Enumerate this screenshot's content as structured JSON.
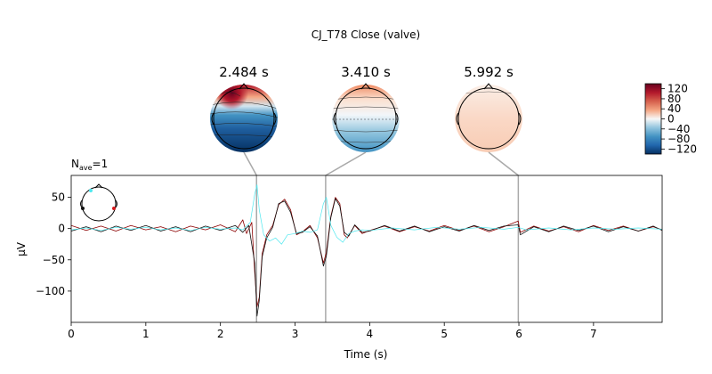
{
  "figure": {
    "title": "CJ_T78 Close (valve)",
    "nave_label": "N",
    "nave_sub": "ave",
    "nave_value": "=1"
  },
  "chart_data": {
    "type": "line",
    "xlabel": "Time (s)",
    "ylabel": "µV",
    "xlim": [
      0,
      7.92
    ],
    "ylim": [
      -150,
      85
    ],
    "xticks": [
      0,
      1,
      2,
      3,
      4,
      5,
      6,
      7
    ],
    "yticks": [
      50,
      0,
      -50,
      -100
    ],
    "grid": false,
    "series": [
      {
        "color": "#8b0000",
        "values": [
          [
            0,
            5
          ],
          [
            0.2,
            -3
          ],
          [
            0.4,
            4
          ],
          [
            0.6,
            -4
          ],
          [
            0.8,
            5
          ],
          [
            1.0,
            -2
          ],
          [
            1.2,
            3
          ],
          [
            1.4,
            -5
          ],
          [
            1.6,
            4
          ],
          [
            1.8,
            -2
          ],
          [
            2.0,
            6
          ],
          [
            2.2,
            -5
          ],
          [
            2.3,
            14
          ],
          [
            2.35,
            -8
          ],
          [
            2.42,
            10
          ],
          [
            2.46,
            -70
          ],
          [
            2.49,
            -125
          ],
          [
            2.52,
            -110
          ],
          [
            2.56,
            -40
          ],
          [
            2.62,
            -10
          ],
          [
            2.7,
            5
          ],
          [
            2.78,
            38
          ],
          [
            2.86,
            47
          ],
          [
            2.94,
            30
          ],
          [
            3.02,
            -10
          ],
          [
            3.1,
            -5
          ],
          [
            3.2,
            5
          ],
          [
            3.3,
            -15
          ],
          [
            3.35,
            -40
          ],
          [
            3.38,
            -55
          ],
          [
            3.42,
            -38
          ],
          [
            3.48,
            20
          ],
          [
            3.54,
            50
          ],
          [
            3.6,
            40
          ],
          [
            3.66,
            -10
          ],
          [
            3.7,
            -15
          ],
          [
            3.8,
            5
          ],
          [
            3.9,
            -8
          ],
          [
            4.0,
            -3
          ],
          [
            4.2,
            4
          ],
          [
            4.4,
            -5
          ],
          [
            4.6,
            3
          ],
          [
            4.8,
            -4
          ],
          [
            5.0,
            5
          ],
          [
            5.2,
            -3
          ],
          [
            5.4,
            4
          ],
          [
            5.6,
            -5
          ],
          [
            5.8,
            3
          ],
          [
            5.99,
            12
          ],
          [
            6.02,
            -6
          ],
          [
            6.2,
            4
          ],
          [
            6.4,
            -4
          ],
          [
            6.6,
            3
          ],
          [
            6.8,
            -5
          ],
          [
            7.0,
            5
          ],
          [
            7.2,
            -3
          ],
          [
            7.4,
            4
          ],
          [
            7.6,
            -4
          ],
          [
            7.8,
            3
          ],
          [
            7.92,
            -2
          ]
        ]
      },
      {
        "color": "#111111",
        "values": [
          [
            0,
            -4
          ],
          [
            0.2,
            3
          ],
          [
            0.4,
            -5
          ],
          [
            0.6,
            4
          ],
          [
            0.8,
            -3
          ],
          [
            1.0,
            5
          ],
          [
            1.2,
            -4
          ],
          [
            1.4,
            3
          ],
          [
            1.6,
            -5
          ],
          [
            1.8,
            4
          ],
          [
            2.0,
            -3
          ],
          [
            2.2,
            5
          ],
          [
            2.3,
            -6
          ],
          [
            2.38,
            5
          ],
          [
            2.46,
            -55
          ],
          [
            2.49,
            -140
          ],
          [
            2.52,
            -115
          ],
          [
            2.56,
            -45
          ],
          [
            2.62,
            -15
          ],
          [
            2.7,
            2
          ],
          [
            2.78,
            40
          ],
          [
            2.86,
            44
          ],
          [
            2.94,
            26
          ],
          [
            3.02,
            -8
          ],
          [
            3.1,
            -6
          ],
          [
            3.2,
            3
          ],
          [
            3.3,
            -12
          ],
          [
            3.35,
            -42
          ],
          [
            3.38,
            -60
          ],
          [
            3.42,
            -44
          ],
          [
            3.48,
            18
          ],
          [
            3.54,
            48
          ],
          [
            3.6,
            36
          ],
          [
            3.66,
            -6
          ],
          [
            3.72,
            -12
          ],
          [
            3.8,
            6
          ],
          [
            3.9,
            -6
          ],
          [
            4.0,
            -4
          ],
          [
            4.2,
            5
          ],
          [
            4.4,
            -4
          ],
          [
            4.6,
            4
          ],
          [
            4.8,
            -5
          ],
          [
            5.0,
            3
          ],
          [
            5.2,
            -4
          ],
          [
            5.4,
            5
          ],
          [
            5.6,
            -3
          ],
          [
            5.8,
            4
          ],
          [
            5.99,
            6
          ],
          [
            6.02,
            -10
          ],
          [
            6.2,
            3
          ],
          [
            6.4,
            -5
          ],
          [
            6.6,
            4
          ],
          [
            6.8,
            -3
          ],
          [
            7.0,
            4
          ],
          [
            7.2,
            -5
          ],
          [
            7.4,
            3
          ],
          [
            7.6,
            -4
          ],
          [
            7.8,
            4
          ],
          [
            7.92,
            -3
          ]
        ]
      },
      {
        "color": "#4de8ef",
        "values": [
          [
            0,
            -2
          ],
          [
            0.2,
            1
          ],
          [
            0.4,
            -3
          ],
          [
            0.6,
            2
          ],
          [
            0.8,
            -1
          ],
          [
            1.0,
            2
          ],
          [
            1.2,
            -2
          ],
          [
            1.4,
            1
          ],
          [
            1.6,
            -3
          ],
          [
            1.8,
            2
          ],
          [
            2.0,
            -1
          ],
          [
            2.2,
            1
          ],
          [
            2.3,
            -2
          ],
          [
            2.4,
            10
          ],
          [
            2.46,
            55
          ],
          [
            2.49,
            70
          ],
          [
            2.52,
            30
          ],
          [
            2.58,
            -10
          ],
          [
            2.66,
            -20
          ],
          [
            2.74,
            -15
          ],
          [
            2.82,
            -25
          ],
          [
            2.9,
            -10
          ],
          [
            3.0,
            -8
          ],
          [
            3.1,
            -4
          ],
          [
            3.2,
            -6
          ],
          [
            3.3,
            -2
          ],
          [
            3.38,
            40
          ],
          [
            3.42,
            50
          ],
          [
            3.48,
            5
          ],
          [
            3.56,
            -14
          ],
          [
            3.64,
            -22
          ],
          [
            3.72,
            -8
          ],
          [
            3.8,
            -4
          ],
          [
            3.9,
            -2
          ],
          [
            4.0,
            -3
          ],
          [
            4.3,
            1
          ],
          [
            4.6,
            -2
          ],
          [
            4.9,
            2
          ],
          [
            5.2,
            -1
          ],
          [
            5.5,
            2
          ],
          [
            5.8,
            -1
          ],
          [
            5.99,
            2
          ],
          [
            6.1,
            -2
          ],
          [
            6.4,
            1
          ],
          [
            6.7,
            -2
          ],
          [
            7.0,
            1
          ],
          [
            7.3,
            -1
          ],
          [
            7.6,
            1
          ],
          [
            7.92,
            -1
          ]
        ]
      }
    ],
    "marker_times": [
      2.484,
      3.41,
      5.992
    ],
    "topomaps": [
      {
        "time_label": "2.484 s",
        "time": 2.484
      },
      {
        "time_label": "3.410 s",
        "time": 3.41
      },
      {
        "time_label": "5.992 s",
        "time": 5.992
      }
    ],
    "colorbar": {
      "ticks": [
        "120",
        "80",
        "40",
        "0",
        "−40",
        "−80",
        "−120"
      ],
      "tick_values": [
        120,
        80,
        40,
        0,
        -40,
        -80,
        -120
      ],
      "range": [
        -140,
        140
      ],
      "colors": [
        "#053061",
        "#2166ac",
        "#4393c3",
        "#92c5de",
        "#f7f7f7",
        "#f4a582",
        "#d6604d",
        "#b2182b",
        "#67001f"
      ]
    }
  }
}
